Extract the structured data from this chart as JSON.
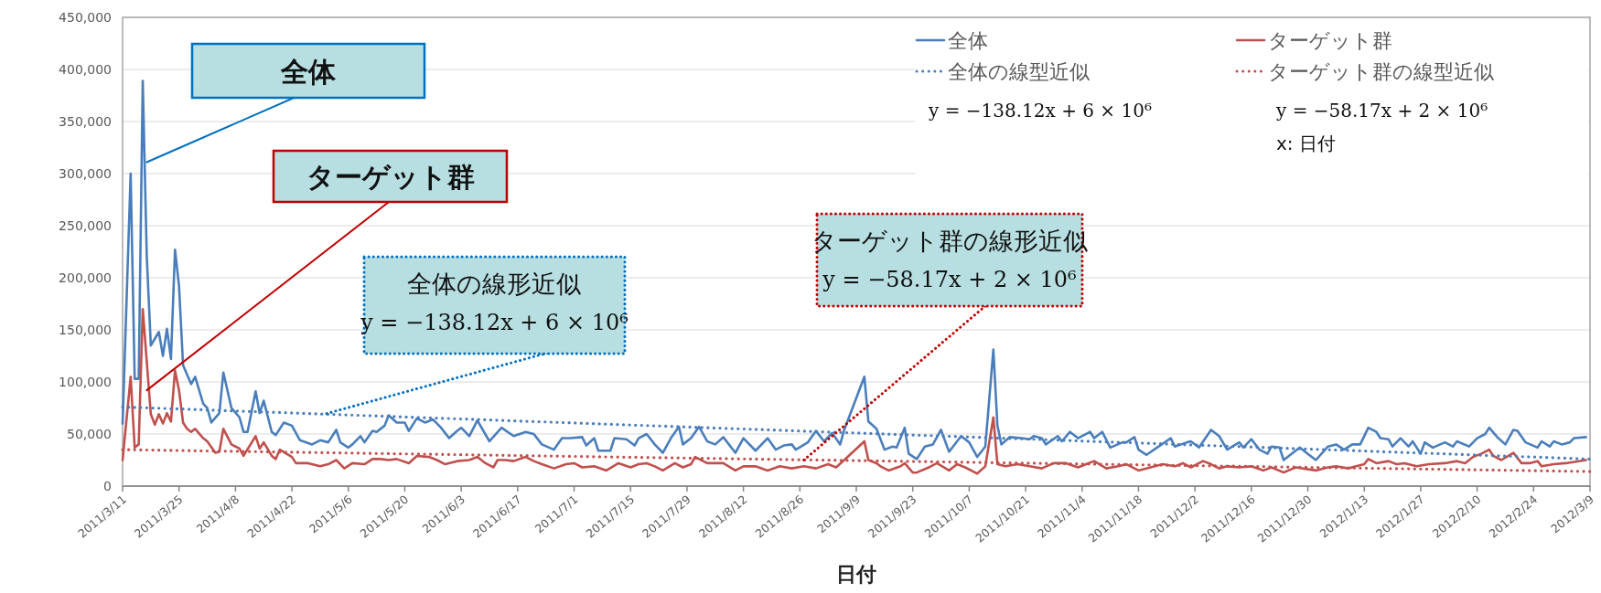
{
  "chart_data": {
    "type": "line",
    "xlabel": "日付",
    "xlim": [
      "2011-03-11",
      "2012-03-09"
    ],
    "xticks": [
      {
        "value": "2011-03-11",
        "label": "2011/3/11"
      },
      {
        "value": "2011-03-25",
        "label": "2011/3/25"
      },
      {
        "value": "2011-04-08",
        "label": "2011/4/8"
      },
      {
        "value": "2011-04-22",
        "label": "2011/4/22"
      },
      {
        "value": "2011-05-06",
        "label": "2011/5/6"
      },
      {
        "value": "2011-05-20",
        "label": "2011/5/20"
      },
      {
        "value": "2011-06-03",
        "label": "2011/6/3"
      },
      {
        "value": "2011-06-17",
        "label": "2011/6/17"
      },
      {
        "value": "2011-07-01",
        "label": "2011/7/1"
      },
      {
        "value": "2011-07-15",
        "label": "2011/7/15"
      },
      {
        "value": "2011-07-29",
        "label": "2011/7/29"
      },
      {
        "value": "2011-08-12",
        "label": "2011/8/12"
      },
      {
        "value": "2011-08-26",
        "label": "2011/8/26"
      },
      {
        "value": "2011-09-09",
        "label": "2011/9/9"
      },
      {
        "value": "2011-09-23",
        "label": "2011/9/23"
      },
      {
        "value": "2011-10-07",
        "label": "2011/10/7"
      },
      {
        "value": "2011-10-21",
        "label": "2011/10/21"
      },
      {
        "value": "2011-11-04",
        "label": "2011/11/4"
      },
      {
        "value": "2011-11-18",
        "label": "2011/11/18"
      },
      {
        "value": "2011-12-02",
        "label": "2011/12/2"
      },
      {
        "value": "2011-12-16",
        "label": "2011/12/16"
      },
      {
        "value": "2011-12-30",
        "label": "2011/12/30"
      },
      {
        "value": "2012-01-13",
        "label": "2012/1/13"
      },
      {
        "value": "2012-01-27",
        "label": "2012/1/27"
      },
      {
        "value": "2012-02-10",
        "label": "2012/2/10"
      },
      {
        "value": "2012-02-24",
        "label": "2012/2/24"
      },
      {
        "value": "2012-03-09",
        "label": "2012/3/9"
      }
    ],
    "ylim": [
      0,
      450000
    ],
    "yticks": [
      0,
      {
        "value": 50000,
        "label": "50,000"
      },
      {
        "value": 100000,
        "label": "100,000"
      },
      {
        "value": 150000,
        "label": "150,000"
      },
      {
        "value": 200000,
        "label": "200,000"
      },
      {
        "value": 250000,
        "label": "250,000"
      },
      {
        "value": 300000,
        "label": "300,000"
      },
      {
        "value": 350000,
        "label": "350,000"
      },
      {
        "value": 400000,
        "label": "400,000"
      },
      {
        "value": 450000,
        "label": "450,000"
      }
    ],
    "grid": "y",
    "legend": "top right",
    "series": [
      {
        "name": "全体",
        "color": "#4a7ebb",
        "x": [
          "2011-03-11",
          "2011-03-13",
          "2011-03-14",
          "2011-03-15",
          "2011-03-16",
          "2011-03-17",
          "2011-03-18",
          "2011-03-20",
          "2011-03-21",
          "2011-03-22",
          "2011-03-23",
          "2011-03-24",
          "2011-03-25",
          "2011-03-26",
          "2011-03-28",
          "2011-03-29",
          "2011-03-31",
          "2011-04-01",
          "2011-04-02",
          "2011-04-04",
          "2011-04-05",
          "2011-04-07",
          "2011-04-09",
          "2011-04-10",
          "2011-04-11",
          "2011-04-13",
          "2011-04-14",
          "2011-04-15",
          "2011-04-17",
          "2011-04-18",
          "2011-04-20",
          "2011-04-22",
          "2011-04-24",
          "2011-04-27",
          "2011-04-29",
          "2011-05-01",
          "2011-05-03",
          "2011-05-04",
          "2011-05-06",
          "2011-05-07",
          "2011-05-09",
          "2011-05-10",
          "2011-05-12",
          "2011-05-13",
          "2011-05-15",
          "2011-05-16",
          "2011-05-18",
          "2011-05-20",
          "2011-05-21",
          "2011-05-23",
          "2011-05-25",
          "2011-05-27",
          "2011-05-29",
          "2011-05-31",
          "2011-06-02",
          "2011-06-03",
          "2011-06-05",
          "2011-06-07",
          "2011-06-10",
          "2011-06-13",
          "2011-06-16",
          "2011-06-19",
          "2011-06-21",
          "2011-06-23",
          "2011-06-26",
          "2011-06-28",
          "2011-06-30",
          "2011-07-03",
          "2011-07-04",
          "2011-07-06",
          "2011-07-07",
          "2011-07-10",
          "2011-07-11",
          "2011-07-14",
          "2011-07-16",
          "2011-07-17",
          "2011-07-19",
          "2011-07-21",
          "2011-07-23",
          "2011-07-25",
          "2011-07-27",
          "2011-07-28",
          "2011-07-30",
          "2011-08-01",
          "2011-08-03",
          "2011-08-05",
          "2011-08-07",
          "2011-08-10",
          "2011-08-12",
          "2011-08-15",
          "2011-08-18",
          "2011-08-20",
          "2011-08-22",
          "2011-08-24",
          "2011-08-25",
          "2011-08-28",
          "2011-08-30",
          "2011-09-01",
          "2011-09-03",
          "2011-09-05",
          "2011-09-06",
          "2011-09-11",
          "2011-09-12",
          "2011-09-14",
          "2011-09-16",
          "2011-09-18",
          "2011-09-19",
          "2011-09-21",
          "2011-09-22",
          "2011-09-24",
          "2011-09-26",
          "2011-09-28",
          "2011-09-30",
          "2011-10-02",
          "2011-10-03",
          "2011-10-05",
          "2011-10-07",
          "2011-10-09",
          "2011-10-11",
          "2011-10-13",
          "2011-10-14",
          "2011-10-15",
          "2011-10-17",
          "2011-10-20",
          "2011-10-22",
          "2011-10-23",
          "2011-10-25",
          "2011-10-26",
          "2011-10-29",
          "2011-10-30",
          "2011-11-01",
          "2011-11-03",
          "2011-11-06",
          "2011-11-07",
          "2011-11-09",
          "2011-11-11",
          "2011-11-14",
          "2011-11-15",
          "2011-11-17",
          "2011-11-18",
          "2011-11-20",
          "2011-11-23",
          "2011-11-26",
          "2011-11-27",
          "2011-11-30",
          "2011-12-01",
          "2011-12-03",
          "2011-12-06",
          "2011-12-08",
          "2011-12-10",
          "2011-12-13",
          "2011-12-14",
          "2011-12-16",
          "2011-12-18",
          "2011-12-20",
          "2011-12-21",
          "2011-12-23",
          "2011-12-24",
          "2011-12-28",
          "2011-12-30",
          "2012-01-01",
          "2012-01-04",
          "2012-01-06",
          "2012-01-08",
          "2012-01-10",
          "2012-01-12",
          "2012-01-14",
          "2012-01-16",
          "2012-01-17",
          "2012-01-19",
          "2012-01-20",
          "2012-01-22",
          "2012-01-24",
          "2012-01-25",
          "2012-01-27",
          "2012-01-28",
          "2012-01-30",
          "2012-02-02",
          "2012-02-04",
          "2012-02-05",
          "2012-02-08",
          "2012-02-10",
          "2012-02-12",
          "2012-02-13",
          "2012-02-15",
          "2012-02-17",
          "2012-02-19",
          "2012-02-20",
          "2012-02-22",
          "2012-02-25",
          "2012-02-26",
          "2012-02-28",
          "2012-02-29",
          "2012-03-02",
          "2012-03-04",
          "2012-03-05",
          "2012-03-08"
        ],
        "values": [
          60000,
          300000,
          103000,
          103000,
          389000,
          220000,
          135000,
          148000,
          125000,
          151000,
          122000,
          227000,
          192000,
          116000,
          98000,
          105000,
          79000,
          75000,
          61000,
          70000,
          109000,
          75000,
          66000,
          52000,
          52000,
          91000,
          70000,
          82000,
          52000,
          49000,
          61000,
          58000,
          44000,
          40000,
          44000,
          42000,
          54000,
          42000,
          37000,
          40000,
          48000,
          42000,
          53000,
          52000,
          58000,
          68000,
          61000,
          61000,
          53000,
          65000,
          61000,
          64000,
          56000,
          46000,
          53000,
          56000,
          48000,
          63000,
          43000,
          56000,
          48000,
          52000,
          50000,
          40000,
          35000,
          46000,
          46000,
          47000,
          39000,
          46000,
          34000,
          34000,
          46000,
          45000,
          39000,
          46000,
          50000,
          40000,
          32000,
          46000,
          57000,
          40000,
          46000,
          57000,
          43000,
          40000,
          47000,
          32000,
          46000,
          34000,
          46000,
          35000,
          39000,
          40000,
          35000,
          42000,
          53000,
          43000,
          51000,
          40000,
          54000,
          105000,
          62000,
          55000,
          35000,
          38000,
          37000,
          56000,
          31000,
          26000,
          38000,
          40000,
          54000,
          33000,
          38000,
          48000,
          42000,
          28000,
          38000,
          131000,
          58000,
          40000,
          47000,
          46000,
          45000,
          48000,
          46000,
          40000,
          48000,
          43000,
          52000,
          46000,
          52000,
          46000,
          52000,
          37000,
          42000,
          42000,
          47000,
          35000,
          30000,
          38000,
          46000,
          38000,
          42000,
          43000,
          37000,
          54000,
          48000,
          35000,
          42000,
          37000,
          45000,
          35000,
          31000,
          38000,
          37000,
          25000,
          37000,
          31000,
          25000,
          38000,
          40000,
          35000,
          40000,
          40000,
          56000,
          52000,
          46000,
          45000,
          38000,
          46000,
          38000,
          43000,
          31000,
          42000,
          37000,
          42000,
          38000,
          43000,
          38000,
          46000,
          50000,
          56000,
          47000,
          40000,
          54000,
          53000,
          42000,
          37000,
          43000,
          38000,
          43000,
          40000,
          42000,
          46000,
          47000
        ]
      },
      {
        "name": "ターゲット群",
        "color": "#c0504d",
        "x": [
          "2011-03-11",
          "2011-03-13",
          "2011-03-14",
          "2011-03-15",
          "2011-03-16",
          "2011-03-18",
          "2011-03-19",
          "2011-03-20",
          "2011-03-21",
          "2011-03-22",
          "2011-03-23",
          "2011-03-24",
          "2011-03-25",
          "2011-03-26",
          "2011-03-27",
          "2011-03-28",
          "2011-03-29",
          "2011-03-31",
          "2011-04-01",
          "2011-04-03",
          "2011-04-04",
          "2011-04-05",
          "2011-04-07",
          "2011-04-09",
          "2011-04-10",
          "2011-04-13",
          "2011-04-14",
          "2011-04-15",
          "2011-04-17",
          "2011-04-18",
          "2011-04-19",
          "2011-04-22",
          "2011-04-23",
          "2011-04-26",
          "2011-04-29",
          "2011-05-01",
          "2011-05-03",
          "2011-05-05",
          "2011-05-07",
          "2011-05-10",
          "2011-05-12",
          "2011-05-14",
          "2011-05-16",
          "2011-05-18",
          "2011-05-21",
          "2011-05-23",
          "2011-05-26",
          "2011-05-28",
          "2011-05-30",
          "2011-06-02",
          "2011-06-05",
          "2011-06-07",
          "2011-06-09",
          "2011-06-11",
          "2011-06-12",
          "2011-06-14",
          "2011-06-16",
          "2011-06-19",
          "2011-06-21",
          "2011-06-23",
          "2011-06-26",
          "2011-06-29",
          "2011-07-01",
          "2011-07-03",
          "2011-07-06",
          "2011-07-09",
          "2011-07-12",
          "2011-07-15",
          "2011-07-17",
          "2011-07-19",
          "2011-07-21",
          "2011-07-23",
          "2011-07-26",
          "2011-07-28",
          "2011-07-30",
          "2011-07-31",
          "2011-08-03",
          "2011-08-05",
          "2011-08-07",
          "2011-08-10",
          "2011-08-12",
          "2011-08-15",
          "2011-08-18",
          "2011-08-21",
          "2011-08-24",
          "2011-08-27",
          "2011-08-30",
          "2011-09-02",
          "2011-09-04",
          "2011-09-06",
          "2011-09-11",
          "2011-09-12",
          "2011-09-14",
          "2011-09-15",
          "2011-09-17",
          "2011-09-20",
          "2011-09-21",
          "2011-09-23",
          "2011-09-24",
          "2011-09-27",
          "2011-09-29",
          "2011-10-02",
          "2011-10-04",
          "2011-10-06",
          "2011-10-09",
          "2011-10-11",
          "2011-10-13",
          "2011-10-14",
          "2011-10-16",
          "2011-10-19",
          "2011-10-22",
          "2011-10-25",
          "2011-10-28",
          "2011-10-31",
          "2011-11-03",
          "2011-11-05",
          "2011-11-07",
          "2011-11-10",
          "2011-11-13",
          "2011-11-15",
          "2011-11-18",
          "2011-11-21",
          "2011-11-24",
          "2011-11-27",
          "2011-11-29",
          "2011-12-01",
          "2011-12-04",
          "2011-12-06",
          "2011-12-08",
          "2011-12-10",
          "2011-12-13",
          "2011-12-16",
          "2011-12-19",
          "2011-12-21",
          "2011-12-24",
          "2011-12-27",
          "2012-01-01",
          "2012-01-04",
          "2012-01-06",
          "2012-01-09",
          "2012-01-11",
          "2012-01-13",
          "2012-01-14",
          "2012-01-16",
          "2012-01-19",
          "2012-01-21",
          "2012-01-23",
          "2012-01-26",
          "2012-01-29",
          "2012-02-02",
          "2012-02-05",
          "2012-02-07",
          "2012-02-09",
          "2012-02-11",
          "2012-02-13",
          "2012-02-14",
          "2012-02-16",
          "2012-02-19",
          "2012-02-21",
          "2012-02-23",
          "2012-02-25",
          "2012-02-26",
          "2012-02-29",
          "2012-03-03",
          "2012-03-08"
        ],
        "values": [
          25000,
          105000,
          37000,
          40000,
          170000,
          69000,
          59000,
          69000,
          60000,
          70000,
          62000,
          111000,
          92000,
          61000,
          55000,
          52000,
          55000,
          46000,
          43000,
          32000,
          33000,
          55000,
          40000,
          36000,
          29000,
          48000,
          36000,
          42000,
          29000,
          26000,
          35000,
          28000,
          22000,
          22000,
          19000,
          21000,
          25000,
          17000,
          22000,
          21000,
          26000,
          26000,
          25000,
          26000,
          22000,
          29000,
          28000,
          25000,
          21000,
          24000,
          25000,
          28000,
          22000,
          18000,
          25000,
          25000,
          24000,
          28000,
          24000,
          21000,
          17000,
          21000,
          22000,
          18000,
          19000,
          15000,
          22000,
          18000,
          21000,
          22000,
          19000,
          15000,
          22000,
          18000,
          21000,
          28000,
          22000,
          22000,
          22000,
          15000,
          19000,
          19000,
          15000,
          19000,
          17000,
          19000,
          17000,
          21000,
          18000,
          25000,
          43000,
          25000,
          22000,
          19000,
          15000,
          19000,
          22000,
          13000,
          13000,
          18000,
          22000,
          15000,
          21000,
          18000,
          12000,
          19000,
          66000,
          21000,
          19000,
          21000,
          19000,
          17000,
          22000,
          22000,
          18000,
          21000,
          24000,
          17000,
          19000,
          21000,
          15000,
          18000,
          21000,
          19000,
          22000,
          18000,
          24000,
          21000,
          17000,
          19000,
          18000,
          19000,
          15000,
          18000,
          13000,
          18000,
          15000,
          18000,
          19000,
          17000,
          19000,
          21000,
          26000,
          22000,
          24000,
          21000,
          22000,
          19000,
          21000,
          22000,
          24000,
          22000,
          28000,
          31000,
          35000,
          29000,
          25000,
          32000,
          22000,
          22000,
          24000,
          19000,
          21000,
          22000,
          25000
        ]
      },
      {
        "name": "全体の線型近似",
        "color": "#4a7ebb",
        "line_style": "dotted",
        "x": [
          "2011-03-11",
          "2012-03-09"
        ],
        "values": [
          76000,
          26000
        ]
      },
      {
        "name": "ターゲット群の線型近似",
        "color": "#c0504d",
        "line_style": "dotted",
        "x": [
          "2011-03-11",
          "2012-03-09"
        ],
        "values": [
          35000,
          14000
        ]
      }
    ],
    "annotations": [
      {
        "text": "全体",
        "x": "2011-03-17",
        "y": 311000
      },
      {
        "text": "ターゲット群",
        "x": "2011-03-17",
        "y": 92000
      },
      {
        "text": "y = −138.12x + 6 × 10⁶",
        "x": "2011-04-30",
        "y": 69000
      },
      {
        "text": "y = −58.17x + 2 × 10⁶",
        "x": "2011-08-27",
        "y": 25000
      },
      "全体の線形近似",
      "ターゲット群の線形近似",
      "y = −138.12x + 6 × 10⁶",
      "y = −58.17x + 2 × 10⁶",
      "x: 日付"
    ]
  }
}
